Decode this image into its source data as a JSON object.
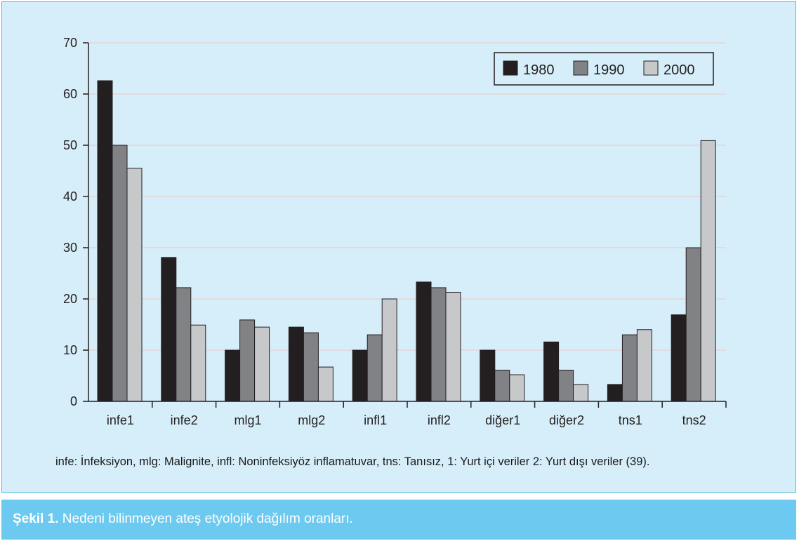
{
  "chart_data": {
    "type": "bar",
    "categories": [
      "infe1",
      "infe2",
      "mlg1",
      "mlg2",
      "infl1",
      "infl2",
      "diğer1",
      "diğer2",
      "tns1",
      "tns2"
    ],
    "series": [
      {
        "name": "1980",
        "values": [
          62.6,
          28.1,
          10.0,
          14.5,
          10.0,
          23.3,
          10.0,
          11.6,
          3.3,
          16.9
        ]
      },
      {
        "name": "1990",
        "values": [
          50.0,
          22.2,
          15.9,
          13.4,
          13.0,
          22.2,
          6.1,
          6.1,
          13.0,
          30.0
        ]
      },
      {
        "name": "2000",
        "values": [
          45.5,
          14.9,
          14.5,
          6.7,
          20.0,
          21.3,
          5.2,
          3.3,
          14.0,
          50.9
        ]
      }
    ],
    "colors": [
      "#231f20",
      "#808285",
      "#c7c8ca"
    ],
    "ylim": [
      0,
      70
    ],
    "yticks": [
      "0",
      "10",
      "20",
      "30",
      "40",
      "50",
      "60",
      "70"
    ],
    "grid": true,
    "legend_position": "top-right"
  },
  "footnote": "infe: İnfeksiyon, mlg: Malignite, infl: Noninfeksiyöz inflamatuvar, tns: Tanısız, 1: Yurt içi veriler  2: Yurt dışı veriler (39).",
  "caption": {
    "label": "Şekil 1.",
    "text": " Nedeni bilinmeyen ateş etyolojik dağılım oranları."
  }
}
